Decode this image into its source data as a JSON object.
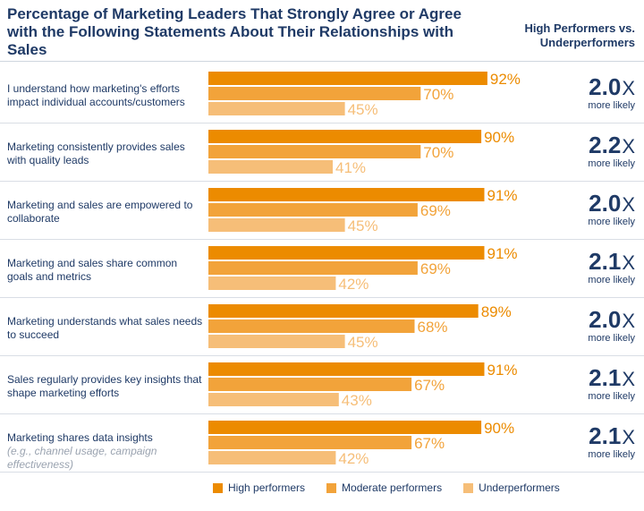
{
  "chart_data": {
    "type": "bar",
    "orientation": "horizontal",
    "title": "Percentage of Marketing Leaders That Strongly Agree or Agree with the Following Statements About Their Relationships with Sales",
    "ratio_header": "High Performers vs. Underperformers",
    "ratio_suffix": "X",
    "ratio_caption": "more likely",
    "value_suffix": "%",
    "xlim": [
      0,
      100
    ],
    "series": [
      {
        "name": "High performers",
        "color": "#ec8b00"
      },
      {
        "name": "Moderate performers",
        "color": "#f2a33a"
      },
      {
        "name": "Underperformers",
        "color": "#f6be78"
      }
    ],
    "rows": [
      {
        "label": "I understand how marketing's efforts impact individual accounts/customers",
        "sublabel": "",
        "values": [
          92,
          70,
          45
        ],
        "ratio": "2.0"
      },
      {
        "label": "Marketing consistently provides sales with quality leads",
        "sublabel": "",
        "values": [
          90,
          70,
          41
        ],
        "ratio": "2.2"
      },
      {
        "label": "Marketing and sales are empowered to collaborate",
        "sublabel": "",
        "values": [
          91,
          69,
          45
        ],
        "ratio": "2.0"
      },
      {
        "label": "Marketing and sales share common goals and metrics",
        "sublabel": "",
        "values": [
          91,
          69,
          42
        ],
        "ratio": "2.1"
      },
      {
        "label": "Marketing understands what sales needs to succeed",
        "sublabel": "",
        "values": [
          89,
          68,
          45
        ],
        "ratio": "2.0"
      },
      {
        "label": "Sales regularly provides key insights that shape marketing efforts",
        "sublabel": "",
        "values": [
          91,
          67,
          43
        ],
        "ratio": "2.1"
      },
      {
        "label": "Marketing shares data insights",
        "sublabel": "(e.g., channel usage, campaign effectiveness)",
        "values": [
          90,
          67,
          42
        ],
        "ratio": "2.1"
      }
    ]
  }
}
